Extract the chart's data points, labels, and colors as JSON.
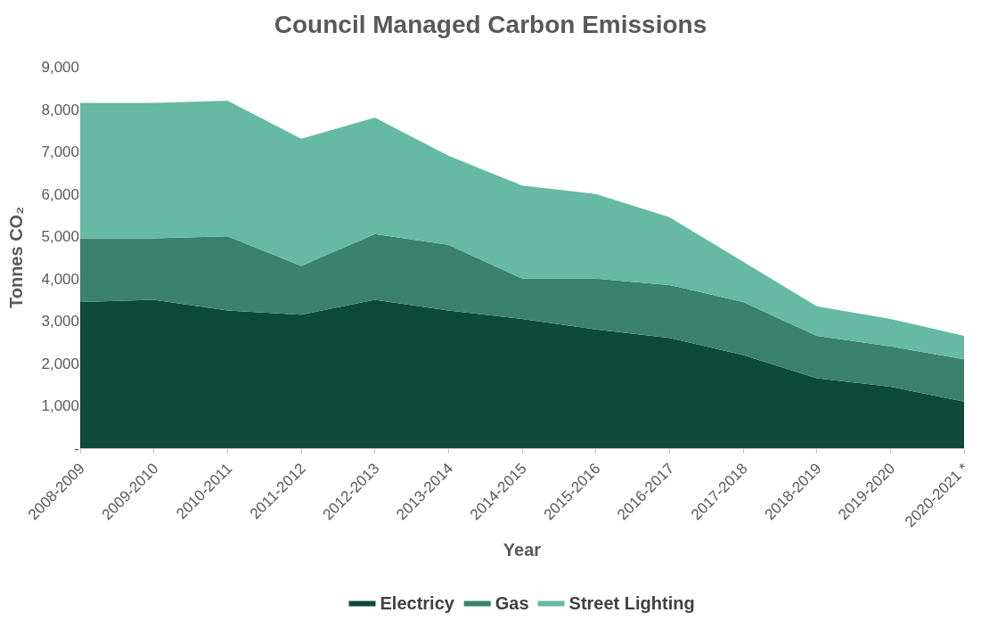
{
  "chart_data": {
    "type": "area",
    "stacked": true,
    "title": "Council Managed Carbon Emissions",
    "xlabel": "Year",
    "ylabel": "Tonnes CO₂",
    "categories": [
      "2008-2009",
      "2009-2010",
      "2010-2011",
      "2011-2012",
      "2012-2013",
      "2013-2014",
      "2014-2015",
      "2015-2016",
      "2016-2017",
      "2017-2018",
      "2018-2019",
      "2019-2020",
      "2020-2021 *"
    ],
    "series": [
      {
        "name": "Electricy",
        "color": "#0d4a3a",
        "values": [
          3450,
          3500,
          3250,
          3150,
          3500,
          3250,
          3050,
          2800,
          2600,
          2200,
          1650,
          1450,
          1100
        ]
      },
      {
        "name": "Gas",
        "color": "#3a826d",
        "values": [
          1500,
          1450,
          1750,
          1150,
          1550,
          1550,
          950,
          1200,
          1250,
          1250,
          1000,
          950,
          1000
        ]
      },
      {
        "name": "Street Lighting",
        "color": "#66b9a2",
        "values": [
          3200,
          3200,
          3200,
          3000,
          2750,
          2100,
          2200,
          2000,
          1600,
          950,
          700,
          650,
          550
        ]
      }
    ],
    "ylim": [
      0,
      9000
    ],
    "yticks": [
      {
        "value": 0,
        "label": "-"
      },
      {
        "value": 1000,
        "label": "1,000"
      },
      {
        "value": 2000,
        "label": "2,000"
      },
      {
        "value": 3000,
        "label": "3,000"
      },
      {
        "value": 4000,
        "label": "4,000"
      },
      {
        "value": 5000,
        "label": "5,000"
      },
      {
        "value": 6000,
        "label": "6,000"
      },
      {
        "value": 7000,
        "label": "7,000"
      },
      {
        "value": 8000,
        "label": "8,000"
      },
      {
        "value": 9000,
        "label": "9,000"
      }
    ],
    "legend": "bottom"
  }
}
